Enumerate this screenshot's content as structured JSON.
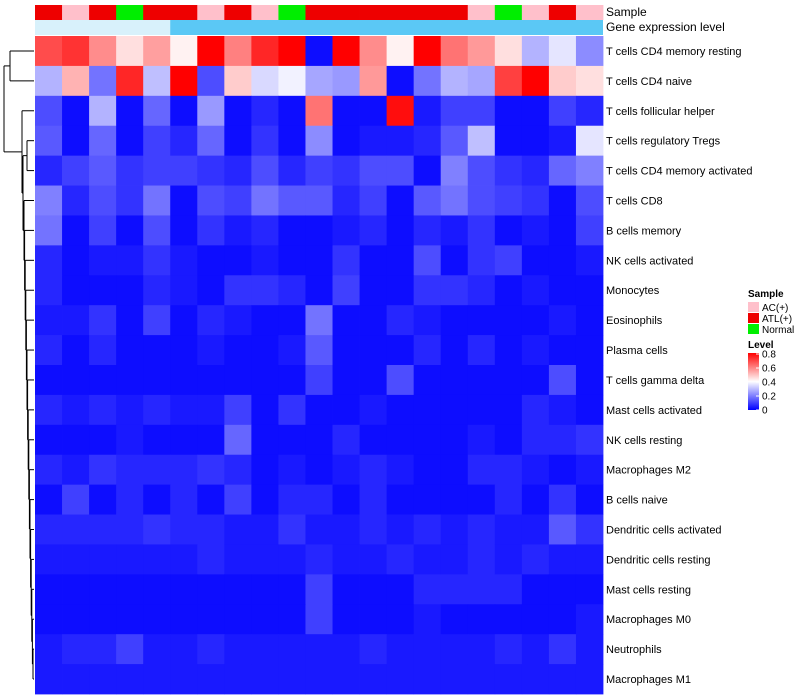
{
  "chart_data": {
    "type": "heatmap",
    "annotation_labels": {
      "sample": "Sample",
      "gene_level": "Gene expression level"
    },
    "rows": [
      "T cells CD4 memory resting",
      "T cells CD4 naive",
      "T cells follicular helper",
      "T cells regulatory  Tregs",
      "T cells CD4 memory activated",
      "T cells CD8",
      "B cells memory",
      "NK cells activated",
      "Monocytes",
      "Eosinophils",
      "Plasma cells",
      "T cells gamma delta",
      "Mast cells activated",
      "NK cells resting",
      "Macrophages M2",
      "B cells naive",
      "Dendritic cells activated",
      "Dendritic cells resting",
      "Mast cells resting",
      "Macrophages M0",
      "Neutrophils",
      "Macrophages M1"
    ],
    "sample_groups": [
      "ATL(+)",
      "AC(+)",
      "ATL(+)",
      "Normal",
      "ATL(+)",
      "ATL(+)",
      "AC(+)",
      "ATL(+)",
      "AC(+)",
      "Normal",
      "ATL(+)",
      "ATL(+)",
      "ATL(+)",
      "ATL(+)",
      "ATL(+)",
      "ATL(+)",
      "AC(+)",
      "Normal",
      "AC(+)",
      "ATL(+)",
      "AC(+)"
    ],
    "values": [
      [
        0.68,
        0.72,
        0.58,
        0.45,
        0.55,
        0.42,
        0.8,
        0.6,
        0.74,
        0.8,
        0.02,
        0.8,
        0.58,
        0.42,
        0.8,
        0.62,
        0.56,
        0.45,
        0.28,
        0.36,
        0.22
      ],
      [
        0.28,
        0.52,
        0.18,
        0.74,
        0.3,
        0.8,
        0.12,
        0.48,
        0.34,
        0.38,
        0.26,
        0.24,
        0.56,
        0.02,
        0.18,
        0.28,
        0.26,
        0.7,
        0.8,
        0.48,
        0.45
      ],
      [
        0.12,
        0.02,
        0.28,
        0.02,
        0.16,
        0.02,
        0.24,
        0.02,
        0.06,
        0.02,
        0.62,
        0.02,
        0.02,
        0.78,
        0.04,
        0.1,
        0.1,
        0.02,
        0.02,
        0.1,
        0.06
      ],
      [
        0.14,
        0.02,
        0.16,
        0.02,
        0.1,
        0.06,
        0.16,
        0.02,
        0.08,
        0.02,
        0.22,
        0.02,
        0.04,
        0.04,
        0.06,
        0.14,
        0.3,
        0.02,
        0.02,
        0.04,
        0.36
      ],
      [
        0.06,
        0.1,
        0.14,
        0.08,
        0.1,
        0.1,
        0.08,
        0.06,
        0.12,
        0.06,
        0.1,
        0.08,
        0.12,
        0.12,
        0.02,
        0.2,
        0.12,
        0.08,
        0.06,
        0.16,
        0.2
      ],
      [
        0.2,
        0.06,
        0.12,
        0.08,
        0.18,
        0.02,
        0.12,
        0.1,
        0.18,
        0.14,
        0.14,
        0.06,
        0.1,
        0.02,
        0.14,
        0.18,
        0.12,
        0.1,
        0.08,
        0.02,
        0.12
      ],
      [
        0.18,
        0.02,
        0.1,
        0.02,
        0.12,
        0.02,
        0.08,
        0.04,
        0.06,
        0.02,
        0.02,
        0.04,
        0.06,
        0.02,
        0.06,
        0.04,
        0.08,
        0.02,
        0.04,
        0.02,
        0.1
      ],
      [
        0.06,
        0.02,
        0.04,
        0.04,
        0.08,
        0.04,
        0.02,
        0.02,
        0.04,
        0.02,
        0.02,
        0.08,
        0.02,
        0.02,
        0.12,
        0.02,
        0.08,
        0.1,
        0.02,
        0.02,
        0.04
      ],
      [
        0.06,
        0.02,
        0.02,
        0.02,
        0.06,
        0.04,
        0.02,
        0.08,
        0.08,
        0.06,
        0.02,
        0.1,
        0.02,
        0.02,
        0.08,
        0.08,
        0.06,
        0.02,
        0.04,
        0.02,
        0.02
      ],
      [
        0.04,
        0.04,
        0.08,
        0.02,
        0.1,
        0.02,
        0.06,
        0.04,
        0.02,
        0.02,
        0.18,
        0.02,
        0.02,
        0.06,
        0.04,
        0.02,
        0.02,
        0.02,
        0.02,
        0.04,
        0.02
      ],
      [
        0.06,
        0.02,
        0.06,
        0.02,
        0.02,
        0.02,
        0.04,
        0.02,
        0.02,
        0.04,
        0.14,
        0.02,
        0.02,
        0.02,
        0.06,
        0.02,
        0.06,
        0.02,
        0.04,
        0.02,
        0.02
      ],
      [
        0.02,
        0.02,
        0.02,
        0.02,
        0.02,
        0.02,
        0.02,
        0.02,
        0.02,
        0.02,
        0.1,
        0.02,
        0.02,
        0.12,
        0.02,
        0.02,
        0.02,
        0.02,
        0.02,
        0.12,
        0.02
      ],
      [
        0.06,
        0.04,
        0.06,
        0.04,
        0.06,
        0.04,
        0.04,
        0.1,
        0.02,
        0.08,
        0.02,
        0.02,
        0.04,
        0.02,
        0.02,
        0.02,
        0.02,
        0.02,
        0.06,
        0.04,
        0.02
      ],
      [
        0.02,
        0.02,
        0.02,
        0.04,
        0.02,
        0.02,
        0.02,
        0.16,
        0.02,
        0.02,
        0.02,
        0.06,
        0.02,
        0.02,
        0.02,
        0.02,
        0.04,
        0.02,
        0.06,
        0.06,
        0.08
      ],
      [
        0.06,
        0.04,
        0.08,
        0.06,
        0.06,
        0.06,
        0.08,
        0.06,
        0.02,
        0.04,
        0.02,
        0.04,
        0.06,
        0.04,
        0.02,
        0.02,
        0.06,
        0.06,
        0.04,
        0.02,
        0.04
      ],
      [
        0.02,
        0.1,
        0.02,
        0.06,
        0.02,
        0.06,
        0.02,
        0.1,
        0.02,
        0.06,
        0.06,
        0.02,
        0.06,
        0.02,
        0.02,
        0.02,
        0.02,
        0.06,
        0.02,
        0.08,
        0.02
      ],
      [
        0.06,
        0.06,
        0.06,
        0.06,
        0.08,
        0.06,
        0.06,
        0.04,
        0.04,
        0.08,
        0.04,
        0.04,
        0.06,
        0.04,
        0.06,
        0.04,
        0.06,
        0.04,
        0.04,
        0.14,
        0.08
      ],
      [
        0.04,
        0.04,
        0.04,
        0.04,
        0.04,
        0.04,
        0.06,
        0.04,
        0.04,
        0.04,
        0.06,
        0.04,
        0.04,
        0.06,
        0.04,
        0.04,
        0.06,
        0.04,
        0.06,
        0.04,
        0.04
      ],
      [
        0.02,
        0.02,
        0.02,
        0.02,
        0.02,
        0.02,
        0.02,
        0.02,
        0.02,
        0.02,
        0.1,
        0.02,
        0.02,
        0.02,
        0.06,
        0.06,
        0.06,
        0.06,
        0.02,
        0.02,
        0.02
      ],
      [
        0.02,
        0.02,
        0.02,
        0.02,
        0.02,
        0.02,
        0.02,
        0.02,
        0.02,
        0.02,
        0.1,
        0.02,
        0.02,
        0.02,
        0.04,
        0.02,
        0.02,
        0.02,
        0.02,
        0.02,
        0.04
      ],
      [
        0.04,
        0.06,
        0.06,
        0.1,
        0.04,
        0.04,
        0.06,
        0.04,
        0.04,
        0.04,
        0.04,
        0.04,
        0.06,
        0.04,
        0.04,
        0.04,
        0.04,
        0.06,
        0.04,
        0.08,
        0.04
      ],
      [
        0.04,
        0.04,
        0.04,
        0.04,
        0.04,
        0.04,
        0.04,
        0.04,
        0.04,
        0.04,
        0.04,
        0.04,
        0.04,
        0.04,
        0.04,
        0.04,
        0.04,
        0.04,
        0.04,
        0.04,
        0.04
      ]
    ],
    "legend": {
      "sample_title": "Sample",
      "sample_entries": [
        {
          "label": "AC(+)",
          "color": "#ffc0cb"
        },
        {
          "label": "ATL(+)",
          "color": "#ee0000"
        },
        {
          "label": "Normal",
          "color": "#00ee00"
        }
      ],
      "level_title": "Level",
      "level_ticks": [
        "0.8",
        "0.6",
        "0.4",
        "0.2",
        "0"
      ],
      "placement": "right"
    },
    "colors": {
      "low": "#0000ff",
      "mid": "#ffffff",
      "high": "#ff0000",
      "gene_level_bar": "#5bc8f5",
      "gene_level_bar_pale": "#d8f1fb",
      "dendrogram": "#000000"
    },
    "vmin": 0,
    "vmid": 0.4,
    "vmax": 0.8
  }
}
